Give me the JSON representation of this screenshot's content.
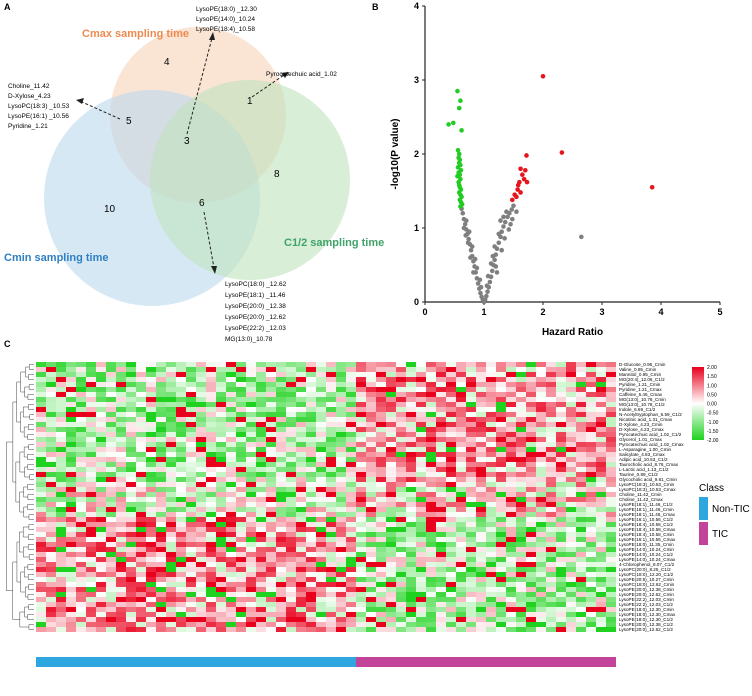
{
  "panels": {
    "A": {
      "label": "A",
      "sets": {
        "cmax": {
          "title": "Cmax sampling time",
          "color": "#f7d5bd",
          "title_color": "#ef8a4f"
        },
        "cmin": {
          "title": "Cmin sampling time",
          "color": "#bcd9ee",
          "title_color": "#2f7fc1"
        },
        "c12": {
          "title": "C1/2 sampling time",
          "color": "#bfe3bd",
          "title_color": "#3fa36a"
        }
      },
      "counts": {
        "cmax_only": "4",
        "cmin_only": "10",
        "c12_only": "8",
        "cmax_cmin": "5",
        "cmax_c12": "1",
        "cmin_c12": "6",
        "all": "3"
      },
      "annotations": {
        "cmax_cmin": [
          "Choline_11.42",
          "D-Xylose_4.23",
          "LysoPC(18:3) _10.53",
          "LysoPE(16:1) _10.56",
          "Pyridine_1.21"
        ],
        "all": [
          "LysoPE(18:0) _12.30",
          "LysoPE(14:0)_10.24",
          "LysoPE(18:4)_10.58"
        ],
        "cmax_c12": [
          "Pyrocatechuic acid_1.02"
        ],
        "cmin_c12": [
          "LysoPC(18:0) _12.62",
          "LysoPE(18:1) _11.46",
          "LysoPE(20:0) _12.38",
          "LysoPE(20:0) _12.62",
          "LysoPE(22:2) _12.03",
          "MG(13:0)_10.78"
        ]
      }
    },
    "B": {
      "label": "B"
    },
    "C": {
      "label": "C",
      "row_labels": [
        "D-Glucose_0.95_Cmin",
        "Valine_0.95_Cmin",
        "Mannitol_0.95_Cmin",
        "MG(20:4)_12.06_C1/2",
        "Pyridine_1.21_Cmin",
        "Pyridine_1.21_Cmax",
        "Caffeine_5.46_Cmax",
        "MG(13:0)_10.78_Cmin",
        "MG(13:0)_10.78_C1/2",
        "Indole_6.69_C1/2",
        "N-Acetyltryptophan_6.59_C1/2",
        "Nicotinic acid_1.31_Cmax",
        "D-Xylose_4.23_Cmin",
        "D-Xylose_4.23_Cmax",
        "Pyrocatechuic acid_1.02_C1/2",
        "Glycerol_1.01_Cmax",
        "Pyrocatechuic acid_1.02_Cmax",
        "L-Asparagine_1.00_Cmin",
        "Salicylate_4.83_Cmax",
        "Adipic acid_10.53_C1/2",
        "Taurocholic acid_8.76_Cmax",
        "L-Lactic acid_1.13_C1/2",
        "Taurine_0.89_C1/2",
        "Glycocholic acid_9.61_Cmin",
        "LysoPC(18:3)_10.53_Cmin",
        "LysoPC(18:3)_10.53_Cmax",
        "Choline_11.42_Cmin",
        "Choline_11.42_Cmax",
        "LysoPE(18:1)_11.46_C1/2",
        "LysoPE(18:1)_11.46_Cmin",
        "LysoPE(18:1)_11.46_Cmax",
        "LysoPE(16:1)_10.56_C1/2",
        "LysoPE(18:4)_10.58_C1/2",
        "LysoPE(18:4)_10.58_Cmax",
        "LysoPE(18:4)_10.58_Cmin",
        "LysoPE(16:1)_10.56_Cmax",
        "LysoPE(18:0)_11.35_Cmin",
        "LysoPE(14:0)_10.24_Cmin",
        "LysoPE(14:0)_10.24_C1/2",
        "LysoPE(14:0)_10.24_Cmax",
        "4-Chlorophenol_8.07_C1/2",
        "LysoPC(20:0)_8.25_C1/2",
        "LysoPC(18:0)_12.20_C1/2",
        "LysoPE(20:5)_10.27_Cmin",
        "LysoPC(18:0)_12.62_Cmin",
        "LysoPE(20:0)_12.38_Cmin",
        "LysoPE(20:0)_12.62_Cmin",
        "LysoPE(22:2)_12.03_Cmin",
        "LysoPE(22:2)_12.03_C1/2",
        "LysoPE(18:0)_12.30_Cmin",
        "LysoPE(18:0)_12.30_Cmax",
        "LysoPE(18:0)_12.30_C1/2",
        "LysoPE(20:0)_12.38_C1/2",
        "LysoPE(20:0)_12.62_C1/2"
      ],
      "scale_ticks": [
        "2.00",
        "1.50",
        "1.00",
        "0.50",
        "0.00",
        "-0.50",
        "-1.00",
        "-1.50",
        "-2.00"
      ],
      "class_legend": {
        "title": "Class",
        "items": [
          {
            "label": "Non-TIC",
            "color": "#2ea7e0"
          },
          {
            "label": "TIC",
            "color": "#c2449a"
          }
        ]
      },
      "colors": {
        "high": "#e8001c",
        "mid": "#ffffff",
        "low": "#1fd21f"
      }
    }
  },
  "chart_data": {
    "type": "scatter",
    "title": "",
    "xlabel": "Hazard Ratio",
    "ylabel": "-log10(P value)",
    "xlim": [
      0,
      5
    ],
    "ylim": [
      0,
      4
    ],
    "x_ticks": [
      "0",
      "1",
      "2",
      "3",
      "4",
      "5"
    ],
    "y_ticks": [
      "0",
      "1",
      "2",
      "3",
      "4"
    ],
    "colors": {
      "up": "#e8141c",
      "down": "#22cc22",
      "ns": "#7f7f7f"
    },
    "series": [
      {
        "values": [
          [
            2.0,
            3.05
          ],
          [
            2.32,
            2.02
          ],
          [
            3.85,
            1.55
          ],
          [
            1.72,
            1.98
          ],
          [
            1.62,
            1.8
          ],
          [
            1.7,
            1.78
          ],
          [
            1.65,
            1.72
          ],
          [
            1.6,
            1.62
          ],
          [
            1.68,
            1.66
          ],
          [
            1.57,
            1.52
          ],
          [
            1.52,
            1.45
          ],
          [
            1.55,
            1.42
          ],
          [
            1.48,
            1.38
          ],
          [
            1.62,
            1.48
          ],
          [
            1.58,
            1.58
          ],
          [
            1.73,
            1.62
          ]
        ]
      },
      {
        "values": [
          [
            0.55,
            2.85
          ],
          [
            0.6,
            2.72
          ],
          [
            0.58,
            2.62
          ],
          [
            0.48,
            2.42
          ],
          [
            0.4,
            2.4
          ],
          [
            0.62,
            2.32
          ],
          [
            0.56,
            2.05
          ],
          [
            0.58,
            2.0
          ],
          [
            0.57,
            1.95
          ],
          [
            0.59,
            1.92
          ],
          [
            0.58,
            1.88
          ],
          [
            0.6,
            1.85
          ],
          [
            0.56,
            1.82
          ],
          [
            0.61,
            1.78
          ],
          [
            0.57,
            1.75
          ],
          [
            0.59,
            1.72
          ],
          [
            0.55,
            1.7
          ],
          [
            0.6,
            1.66
          ],
          [
            0.57,
            1.62
          ],
          [
            0.58,
            1.58
          ],
          [
            0.59,
            1.55
          ],
          [
            0.61,
            1.52
          ],
          [
            0.58,
            1.48
          ],
          [
            0.6,
            1.45
          ],
          [
            0.62,
            1.42
          ],
          [
            0.59,
            1.38
          ],
          [
            0.61,
            1.35
          ],
          [
            0.63,
            1.32
          ],
          [
            0.6,
            1.29
          ]
        ]
      },
      {
        "values": [
          [
            2.65,
            0.88
          ],
          [
            0.62,
            1.26
          ],
          [
            0.64,
            1.2
          ],
          [
            0.66,
            1.12
          ],
          [
            0.68,
            1.05
          ],
          [
            0.7,
            0.98
          ],
          [
            0.72,
            0.92
          ],
          [
            0.74,
            0.85
          ],
          [
            0.76,
            0.78
          ],
          [
            0.78,
            0.7
          ],
          [
            0.8,
            0.62
          ],
          [
            0.82,
            0.55
          ],
          [
            0.84,
            0.48
          ],
          [
            0.86,
            0.4
          ],
          [
            0.88,
            0.32
          ],
          [
            0.9,
            0.25
          ],
          [
            0.92,
            0.18
          ],
          [
            0.94,
            0.12
          ],
          [
            0.96,
            0.07
          ],
          [
            0.98,
            0.03
          ],
          [
            1.0,
            0.0
          ],
          [
            1.02,
            0.03
          ],
          [
            1.04,
            0.08
          ],
          [
            1.06,
            0.14
          ],
          [
            1.08,
            0.2
          ],
          [
            1.1,
            0.27
          ],
          [
            1.12,
            0.34
          ],
          [
            1.14,
            0.42
          ],
          [
            1.16,
            0.5
          ],
          [
            1.18,
            0.57
          ],
          [
            1.2,
            0.64
          ],
          [
            1.22,
            0.72
          ],
          [
            1.25,
            0.8
          ],
          [
            1.28,
            0.88
          ],
          [
            1.3,
            0.95
          ],
          [
            1.33,
            1.02
          ],
          [
            1.36,
            1.08
          ],
          [
            1.4,
            1.15
          ],
          [
            1.43,
            1.2
          ],
          [
            1.47,
            1.25
          ],
          [
            1.5,
            1.3
          ],
          [
            0.75,
            0.95
          ],
          [
            0.8,
            0.75
          ],
          [
            0.85,
            0.58
          ],
          [
            0.7,
            1.1
          ],
          [
            1.15,
            0.62
          ],
          [
            1.2,
            0.48
          ],
          [
            1.25,
            0.92
          ],
          [
            1.35,
            0.86
          ],
          [
            1.45,
            1.05
          ],
          [
            1.38,
            1.22
          ],
          [
            1.3,
            0.7
          ],
          [
            0.88,
            0.46
          ],
          [
            0.93,
            0.3
          ],
          [
            1.07,
            0.35
          ],
          [
            1.12,
            0.52
          ],
          [
            0.66,
            1.0
          ],
          [
            0.73,
            0.8
          ],
          [
            1.55,
            1.22
          ],
          [
            1.42,
            0.98
          ],
          [
            1.28,
            1.1
          ],
          [
            0.77,
            0.6
          ],
          [
            1.18,
            0.75
          ],
          [
            0.95,
            0.2
          ],
          [
            1.05,
            0.22
          ],
          [
            0.82,
            0.4
          ],
          [
            1.22,
            0.4
          ],
          [
            0.69,
            0.9
          ],
          [
            1.33,
            1.15
          ],
          [
            1.48,
            1.12
          ]
        ]
      }
    ]
  }
}
